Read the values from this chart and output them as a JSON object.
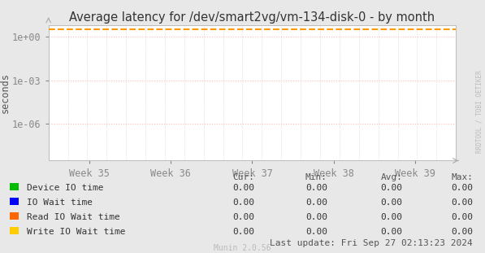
{
  "title": "Average latency for /dev/smart2vg/vm-134-disk-0 - by month",
  "ylabel": "seconds",
  "x_tick_labels": [
    "Week 35",
    "Week 36",
    "Week 37",
    "Week 38",
    "Week 39"
  ],
  "bg_color": "#e8e8e8",
  "plot_bg_color": "#ffffff",
  "grid_h_color": "#ffbbbb",
  "grid_v_color": "#cccccc",
  "dashed_line_value": 3.0,
  "dashed_line_color": "#ff9900",
  "ytick_labels": [
    "1e+00",
    "1e-03",
    "1e-06"
  ],
  "ytick_values": [
    1.0,
    0.001,
    1e-06
  ],
  "ylim": [
    3e-09,
    6.0
  ],
  "legend_items": [
    {
      "label": "Device IO time",
      "color": "#00bb00"
    },
    {
      "label": "IO Wait time",
      "color": "#0000ff"
    },
    {
      "label": "Read IO Wait time",
      "color": "#ff6600"
    },
    {
      "label": "Write IO Wait time",
      "color": "#ffcc00"
    }
  ],
  "table_headers": [
    "Cur:",
    "Min:",
    "Avg:",
    "Max:"
  ],
  "table_values": [
    [
      "0.00",
      "0.00",
      "0.00",
      "0.00"
    ],
    [
      "0.00",
      "0.00",
      "0.00",
      "0.00"
    ],
    [
      "0.00",
      "0.00",
      "0.00",
      "0.00"
    ],
    [
      "0.00",
      "0.00",
      "0.00",
      "0.00"
    ]
  ],
  "footer_text": "Last update: Fri Sep 27 02:13:23 2024",
  "munin_text": "Munin 2.0.56",
  "watermark": "RRDTOOL / TOBI OETIKER",
  "title_fontsize": 10.5,
  "axis_fontsize": 8.5,
  "legend_fontsize": 8,
  "table_fontsize": 8
}
